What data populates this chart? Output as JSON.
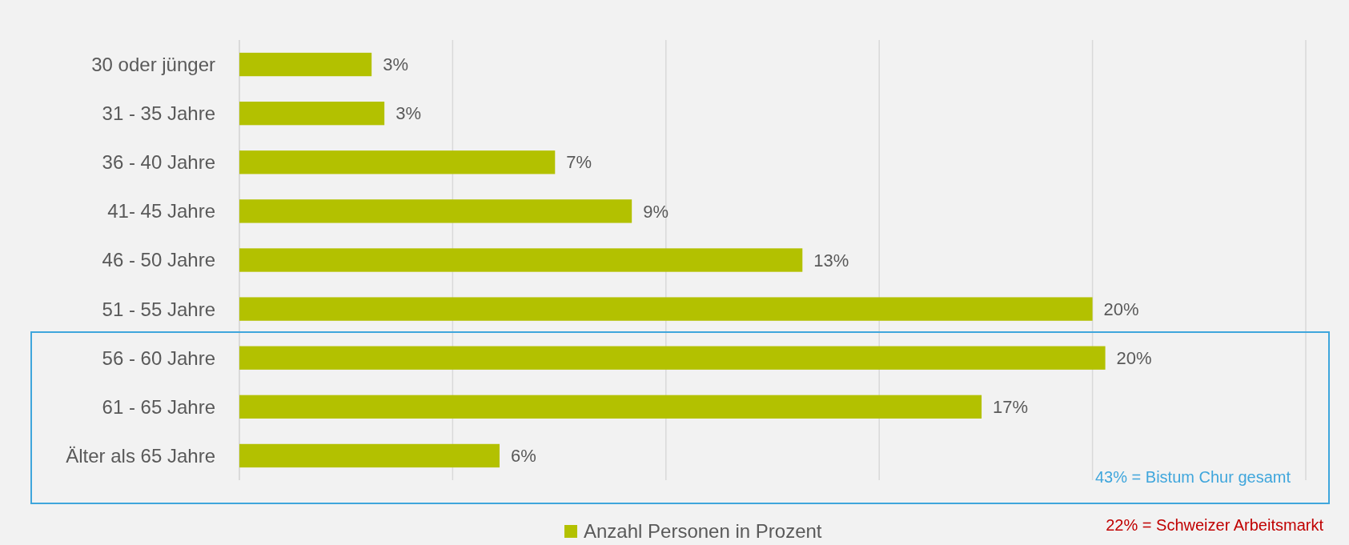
{
  "chart_data": {
    "type": "bar",
    "orientation": "horizontal",
    "categories": [
      "30 oder jünger",
      "31 - 35 Jahre",
      "36 - 40 Jahre",
      "41- 45 Jahre",
      "46 - 50 Jahre",
      "51 - 55 Jahre",
      "56 - 60 Jahre",
      "61 - 65 Jahre",
      "Älter als 65 Jahre"
    ],
    "series": [
      {
        "name": "Anzahl Personen in Prozent",
        "color": "#b3c100",
        "values": [
          3.1,
          3.4,
          7.4,
          9.2,
          13.2,
          20.0,
          20.3,
          17.4,
          6.1
        ],
        "value_labels": [
          "3%",
          "3%",
          "7%",
          "9%",
          "13%",
          "20%",
          "20%",
          "17%",
          "6%"
        ]
      }
    ],
    "xlim": [
      0,
      25
    ],
    "xticks": [
      {
        "value": 0,
        "label": null
      },
      {
        "value": 5,
        "label": null
      },
      {
        "value": 10,
        "label": null
      },
      {
        "value": 15,
        "label": null
      },
      {
        "value": 20,
        "label": null
      },
      {
        "value": 25,
        "label": null
      }
    ],
    "grid": "x",
    "tick_labels": "y",
    "legend": "bottom",
    "annotations": [
      "43% = Bistum Chur gesamt",
      "22% = Schweizer Arbeitsmarkt"
    ]
  }
}
